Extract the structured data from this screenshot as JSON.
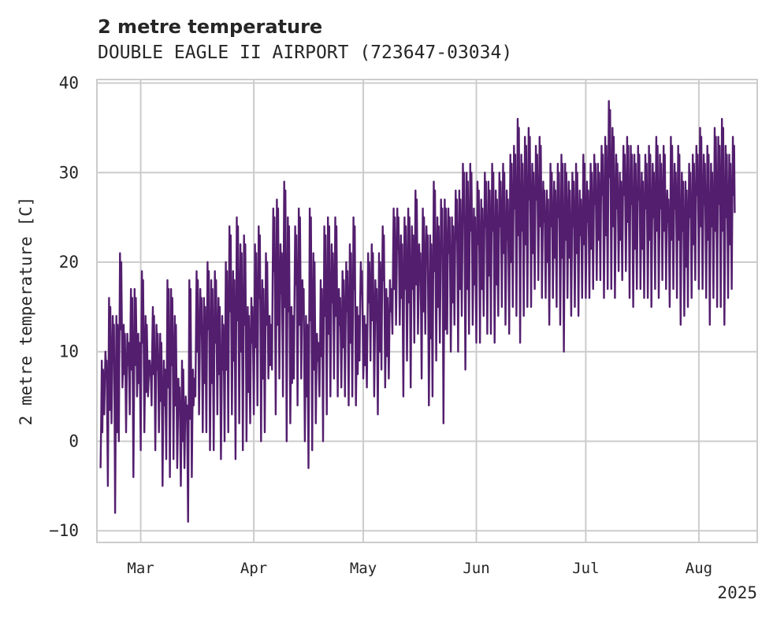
{
  "chart_data": {
    "type": "line",
    "title": "2 metre temperature",
    "subtitle": "DOUBLE EAGLE II AIRPORT (723647-03034)",
    "xlabel": "",
    "ylabel": "2 metre temperature [C]",
    "x_year_label": "2025",
    "xlim": [
      "2025-02-17",
      "2025-08-17"
    ],
    "ylim": [
      -11.3,
      40.4
    ],
    "yticks": [
      -10,
      0,
      10,
      20,
      30,
      40
    ],
    "xticks": [
      {
        "date": "2025-03-01",
        "label": "Mar"
      },
      {
        "date": "2025-04-01",
        "label": "Apr"
      },
      {
        "date": "2025-05-01",
        "label": "May"
      },
      {
        "date": "2025-06-01",
        "label": "Jun"
      },
      {
        "date": "2025-07-01",
        "label": "Jul"
      },
      {
        "date": "2025-08-01",
        "label": "Aug"
      }
    ],
    "grid": true,
    "color": "#531e6e",
    "series": [
      {
        "name": "",
        "x": [
          "2025-02-18",
          "2025-02-19",
          "2025-02-20",
          "2025-02-21",
          "2025-02-22",
          "2025-02-23",
          "2025-02-24",
          "2025-02-25",
          "2025-02-26",
          "2025-02-27",
          "2025-02-28",
          "2025-03-01",
          "2025-03-02",
          "2025-03-03",
          "2025-03-04",
          "2025-03-05",
          "2025-03-06",
          "2025-03-07",
          "2025-03-08",
          "2025-03-09",
          "2025-03-10",
          "2025-03-11",
          "2025-03-12",
          "2025-03-13",
          "2025-03-14",
          "2025-03-15",
          "2025-03-16",
          "2025-03-17",
          "2025-03-18",
          "2025-03-19",
          "2025-03-20",
          "2025-03-21",
          "2025-03-22",
          "2025-03-23",
          "2025-03-24",
          "2025-03-25",
          "2025-03-26",
          "2025-03-27",
          "2025-03-28",
          "2025-03-29",
          "2025-03-30",
          "2025-03-31",
          "2025-04-01",
          "2025-04-02",
          "2025-04-03",
          "2025-04-04",
          "2025-04-05",
          "2025-04-06",
          "2025-04-07",
          "2025-04-08",
          "2025-04-09",
          "2025-04-10",
          "2025-04-11",
          "2025-04-12",
          "2025-04-13",
          "2025-04-14",
          "2025-04-15",
          "2025-04-16",
          "2025-04-17",
          "2025-04-18",
          "2025-04-19",
          "2025-04-20",
          "2025-04-21",
          "2025-04-22",
          "2025-04-23",
          "2025-04-24",
          "2025-04-25",
          "2025-04-26",
          "2025-04-27",
          "2025-04-28",
          "2025-04-29",
          "2025-04-30",
          "2025-05-01",
          "2025-05-02",
          "2025-05-03",
          "2025-05-04",
          "2025-05-05",
          "2025-05-06",
          "2025-05-07",
          "2025-05-08",
          "2025-05-09",
          "2025-05-10",
          "2025-05-11",
          "2025-05-12",
          "2025-05-13",
          "2025-05-14",
          "2025-05-15",
          "2025-05-16",
          "2025-05-17",
          "2025-05-18",
          "2025-05-19",
          "2025-05-20",
          "2025-05-21",
          "2025-05-22",
          "2025-05-23",
          "2025-05-24",
          "2025-05-25",
          "2025-05-26",
          "2025-05-27",
          "2025-05-28",
          "2025-05-29",
          "2025-05-30",
          "2025-05-31",
          "2025-06-01",
          "2025-06-02",
          "2025-06-03",
          "2025-06-04",
          "2025-06-05",
          "2025-06-06",
          "2025-06-07",
          "2025-06-08",
          "2025-06-09",
          "2025-06-10",
          "2025-06-11",
          "2025-06-12",
          "2025-06-13",
          "2025-06-14",
          "2025-06-15",
          "2025-06-16",
          "2025-06-17",
          "2025-06-18",
          "2025-06-19",
          "2025-06-20",
          "2025-06-21",
          "2025-06-22",
          "2025-06-23",
          "2025-06-24",
          "2025-06-25",
          "2025-06-26",
          "2025-06-27",
          "2025-06-28",
          "2025-06-29",
          "2025-06-30",
          "2025-07-01",
          "2025-07-02",
          "2025-07-03",
          "2025-07-04",
          "2025-07-05",
          "2025-07-06",
          "2025-07-07",
          "2025-07-08",
          "2025-07-09",
          "2025-07-10",
          "2025-07-11",
          "2025-07-12",
          "2025-07-13",
          "2025-07-14",
          "2025-07-15",
          "2025-07-16",
          "2025-07-17",
          "2025-07-18",
          "2025-07-19",
          "2025-07-20",
          "2025-07-21",
          "2025-07-22",
          "2025-07-23",
          "2025-07-24",
          "2025-07-25",
          "2025-07-26",
          "2025-07-27",
          "2025-07-28",
          "2025-07-29",
          "2025-07-30",
          "2025-07-31",
          "2025-08-01",
          "2025-08-02",
          "2025-08-03",
          "2025-08-04",
          "2025-08-05",
          "2025-08-06",
          "2025-08-07",
          "2025-08-08",
          "2025-08-09",
          "2025-08-10",
          "2025-08-11",
          "2025-08-12",
          "2025-08-13",
          "2025-08-14",
          "2025-08-15"
        ],
        "y_max": [
          9,
          10,
          16,
          14,
          14,
          21,
          13,
          12,
          17,
          17,
          12,
          19,
          14,
          9,
          15,
          13,
          12,
          9,
          18,
          17,
          14,
          7,
          9,
          5,
          18,
          8,
          19,
          17,
          16,
          20,
          18,
          19,
          16,
          14,
          20,
          24,
          19,
          25,
          22,
          23,
          15,
          16,
          22,
          24,
          18,
          21,
          14,
          26,
          27,
          22,
          29,
          25,
          15,
          24,
          26,
          18,
          14,
          26,
          21,
          12,
          18,
          24,
          25,
          22,
          25,
          17,
          19,
          20,
          22,
          25,
          15,
          20,
          14,
          21,
          22,
          18,
          21,
          24,
          17,
          18,
          26,
          26,
          23,
          25,
          26,
          24,
          28,
          22,
          26,
          24,
          23,
          29,
          25,
          27,
          27,
          26,
          25,
          28,
          28,
          31,
          30,
          31,
          26,
          29,
          27,
          30,
          29,
          31,
          28,
          30,
          31,
          28,
          32,
          33,
          36,
          32,
          34,
          35,
          31,
          33,
          34,
          29,
          28,
          31,
          29,
          31,
          32,
          31,
          29,
          30,
          31,
          28,
          32,
          29,
          31,
          32,
          31,
          33,
          34,
          38,
          35,
          32,
          30,
          33,
          34,
          33,
          32,
          33,
          30,
          32,
          33,
          31,
          34,
          32,
          33,
          28,
          34,
          31,
          33,
          30,
          29,
          31,
          32,
          33,
          35,
          32,
          33,
          31,
          35,
          34,
          36,
          33,
          32,
          34,
          32,
          31,
          34,
          33
        ],
        "y_min": [
          -3,
          3,
          -5,
          2,
          -8,
          0,
          6,
          1,
          3,
          -4,
          5,
          -1,
          1,
          5,
          4,
          -1,
          1,
          -5,
          -2,
          -4,
          -2,
          -3,
          -5,
          -3,
          -9,
          -4,
          5,
          3,
          1,
          1,
          -1,
          -1,
          3,
          -2,
          0,
          1,
          3,
          -2,
          2,
          -1,
          0,
          2,
          3,
          4,
          0,
          1,
          7,
          8,
          3,
          7,
          5,
          0,
          2,
          7,
          4,
          7,
          0,
          -3,
          -1,
          2,
          5,
          0,
          3,
          5,
          7,
          5,
          6,
          5,
          4,
          5,
          4,
          9,
          7,
          6,
          9,
          5,
          3,
          8,
          6,
          7,
          12,
          13,
          13,
          5,
          9,
          6,
          11,
          12,
          7,
          12,
          4,
          5,
          9,
          11,
          2,
          12,
          10,
          13,
          10,
          14,
          8,
          12,
          13,
          11,
          11,
          14,
          12,
          12,
          11,
          14,
          15,
          13,
          12,
          15,
          14,
          11,
          14,
          15,
          15,
          17,
          18,
          16,
          16,
          13,
          16,
          15,
          13,
          10,
          16,
          14,
          15,
          14,
          16,
          16,
          16,
          17,
          18,
          18,
          16,
          17,
          17,
          16,
          19,
          18,
          19,
          16,
          15,
          17,
          17,
          16,
          16,
          15,
          17,
          16,
          18,
          17,
          15,
          17,
          16,
          13,
          14,
          15,
          16,
          18,
          17,
          17,
          16,
          13,
          16,
          15,
          15,
          13,
          16,
          17
        ]
      }
    ]
  }
}
